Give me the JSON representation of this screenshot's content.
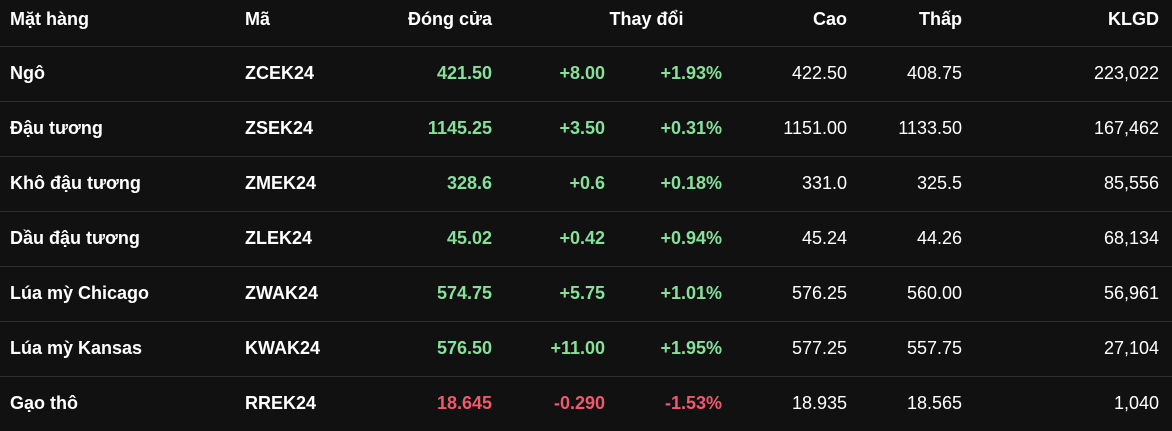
{
  "colors": {
    "background": "#111111",
    "up": "#86e09a",
    "down": "#f0596b",
    "divider": "#2e2e2e"
  },
  "headers": {
    "name": "Mặt hàng",
    "code": "Mã",
    "close": "Đóng cửa",
    "change": "Thay đổi",
    "high": "Cao",
    "low": "Thấp",
    "volume": "KLGD"
  },
  "rows": [
    {
      "name": "Ngô",
      "code": "ZCEK24",
      "close": "421.50",
      "change": "+8.00",
      "pct": "+1.93%",
      "high": "422.50",
      "low": "408.75",
      "volume": "223,022",
      "trend": "up"
    },
    {
      "name": "Đậu tương",
      "code": "ZSEK24",
      "close": "1145.25",
      "change": "+3.50",
      "pct": "+0.31%",
      "high": "1151.00",
      "low": "1133.50",
      "volume": "167,462",
      "trend": "up"
    },
    {
      "name": "Khô đậu tương",
      "code": "ZMEK24",
      "close": "328.6",
      "change": "+0.6",
      "pct": "+0.18%",
      "high": "331.0",
      "low": "325.5",
      "volume": "85,556",
      "trend": "up"
    },
    {
      "name": "Dầu đậu tương",
      "code": "ZLEK24",
      "close": "45.02",
      "change": "+0.42",
      "pct": "+0.94%",
      "high": "45.24",
      "low": "44.26",
      "volume": "68,134",
      "trend": "up"
    },
    {
      "name": "Lúa mỳ Chicago",
      "code": "ZWAK24",
      "close": "574.75",
      "change": "+5.75",
      "pct": "+1.01%",
      "high": "576.25",
      "low": "560.00",
      "volume": "56,961",
      "trend": "up"
    },
    {
      "name": "Lúa mỳ Kansas",
      "code": "KWAK24",
      "close": "576.50",
      "change": "+11.00",
      "pct": "+1.95%",
      "high": "577.25",
      "low": "557.75",
      "volume": "27,104",
      "trend": "up"
    },
    {
      "name": "Gạo thô",
      "code": "RREK24",
      "close": "18.645",
      "change": "-0.290",
      "pct": "-1.53%",
      "high": "18.935",
      "low": "18.565",
      "volume": "1,040",
      "trend": "down"
    }
  ]
}
